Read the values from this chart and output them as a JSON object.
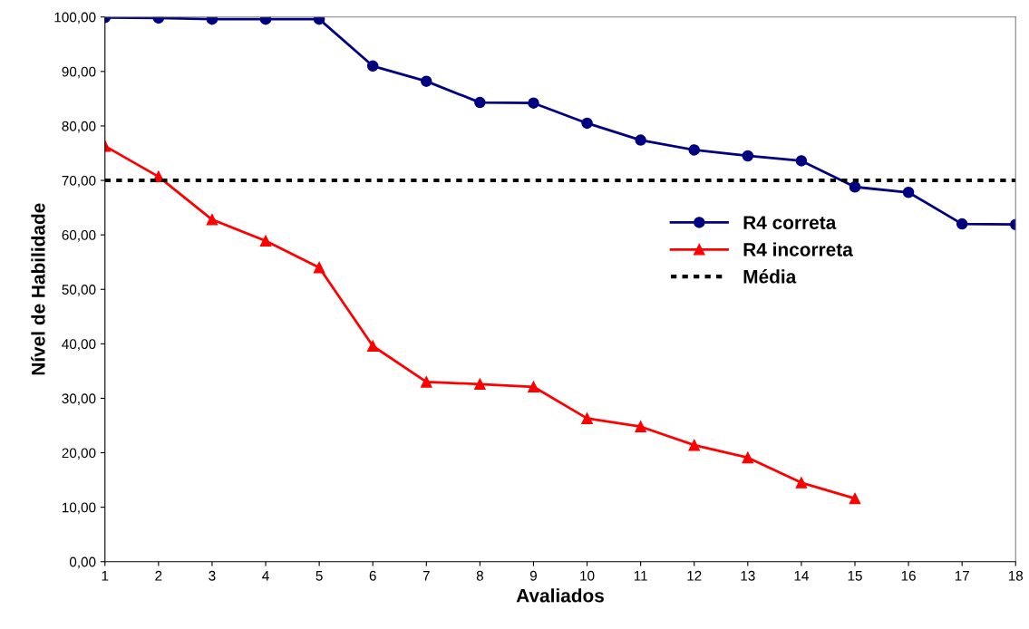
{
  "chart_data": {
    "type": "line",
    "xlabel": "Avaliados",
    "ylabel": "Nível de Habilidade",
    "x": [
      1,
      2,
      3,
      4,
      5,
      6,
      7,
      8,
      9,
      10,
      11,
      12,
      13,
      14,
      15,
      16,
      17,
      18
    ],
    "xlim": [
      1,
      18
    ],
    "xticks": [
      1,
      2,
      3,
      4,
      5,
      6,
      7,
      8,
      9,
      10,
      11,
      12,
      13,
      14,
      15,
      16,
      17,
      18
    ],
    "ylim": [
      0,
      100
    ],
    "yticks": [
      {
        "value": 0,
        "label": "0,00"
      },
      {
        "value": 10,
        "label": "10,00"
      },
      {
        "value": 20,
        "label": "20,00"
      },
      {
        "value": 30,
        "label": "30,00"
      },
      {
        "value": 40,
        "label": "40,00"
      },
      {
        "value": 50,
        "label": "50,00"
      },
      {
        "value": 60,
        "label": "60,00"
      },
      {
        "value": 70,
        "label": "70,00"
      },
      {
        "value": 80,
        "label": "80,00"
      },
      {
        "value": 90,
        "label": "90,00"
      },
      {
        "value": 100,
        "label": "100,00"
      }
    ],
    "series": [
      {
        "name": "R4 correta",
        "color": "#000080",
        "marker": "circle",
        "values": [
          99.9,
          99.8,
          99.6,
          99.6,
          99.6,
          91.0,
          88.2,
          84.3,
          84.2,
          80.5,
          77.4,
          75.6,
          74.5,
          73.6,
          68.8,
          67.8,
          62.0,
          61.9
        ]
      },
      {
        "name": "R4 incorreta",
        "color": "#ff0000",
        "marker": "triangle",
        "values": [
          76.3,
          70.7,
          62.8,
          58.9,
          54.0,
          39.6,
          33.0,
          32.6,
          32.1,
          26.3,
          24.8,
          21.4,
          19.1,
          14.5,
          11.6,
          null,
          null,
          null
        ]
      }
    ],
    "ref_lines": [
      {
        "axis": "y",
        "value": 70,
        "label": "Média",
        "color": "#000000",
        "line_style": "dotted"
      }
    ],
    "line_style": "solid",
    "grid": false,
    "legend": "right"
  }
}
